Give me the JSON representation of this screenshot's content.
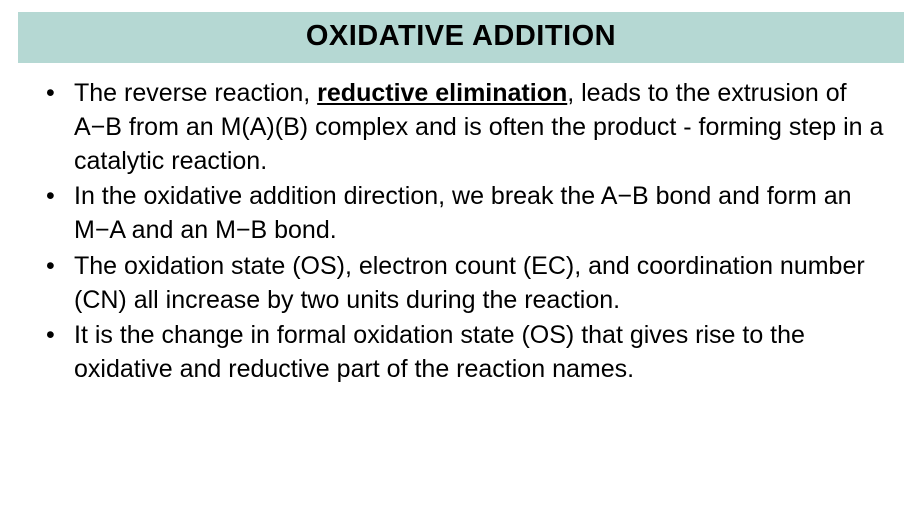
{
  "slide": {
    "title": "OXIDATIVE ADDITION",
    "title_bg_color": "#b5d8d3",
    "title_text_color": "#000000",
    "title_fontsize": 29,
    "body_fontsize": 25,
    "body_text_color": "#000000",
    "background_color": "#ffffff",
    "bullets": [
      {
        "segments": [
          {
            "text": "The reverse reaction, ",
            "style": "normal"
          },
          {
            "text": "reductive elimination",
            "style": "bold-underline"
          },
          {
            "text": ", leads to the extrusion of A−B from an M(A)(B) complex and is often the product - forming step in a catalytic reaction.",
            "style": "normal"
          }
        ]
      },
      {
        "segments": [
          {
            "text": "In the oxidative addition direction, we break the A−B bond and form an M−A and an M−B bond.",
            "style": "normal"
          }
        ]
      },
      {
        "segments": [
          {
            "text": "The oxidation state (OS), electron count (EC), and coordination number (CN) all increase by two units during the reaction.",
            "style": "normal"
          }
        ]
      },
      {
        "segments": [
          {
            "text": "It is the change in formal oxidation state (OS) that gives rise to the oxidative and reductive part of the reaction names.",
            "style": "normal"
          }
        ]
      }
    ]
  }
}
